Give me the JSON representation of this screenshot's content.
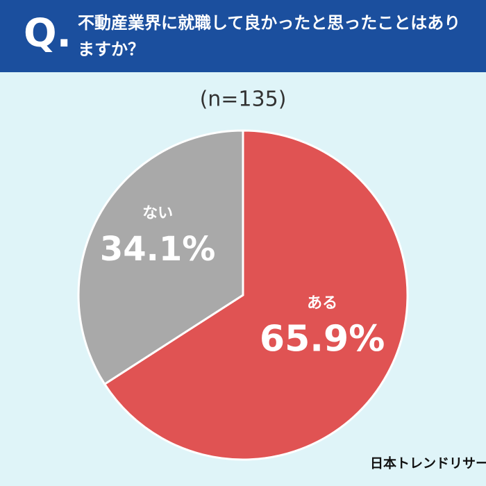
{
  "chart_data": {
    "type": "pie",
    "question_mark": "Q.",
    "title": "不動産業界に就職して良かったと思ったことはありますか？",
    "subtitle": "(n=135)",
    "categories": [
      "ある",
      "ない"
    ],
    "values": [
      65.9,
      34.1
    ],
    "value_labels": [
      "65.9%",
      "34.1%"
    ],
    "colors": [
      "#e05353",
      "#a9a9a9"
    ],
    "source": "日本トレンドリサーチ"
  }
}
